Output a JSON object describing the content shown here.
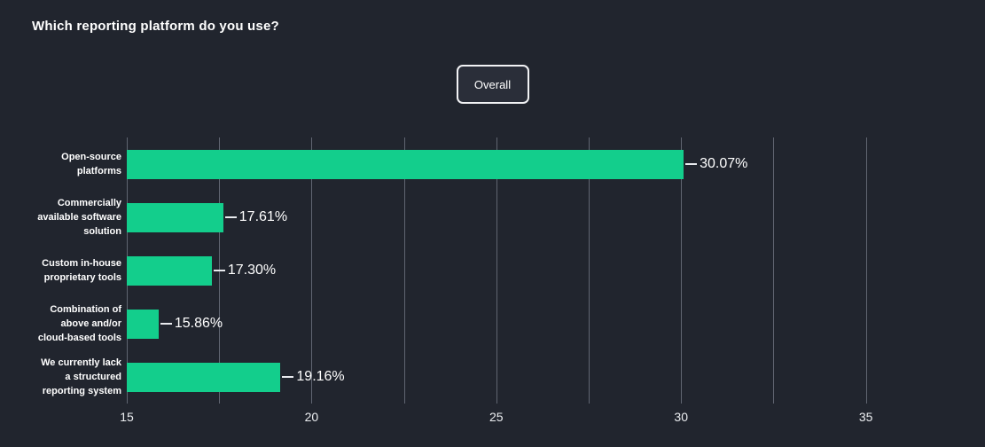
{
  "title": "Which reporting platform do you use?",
  "filter_button": {
    "label": "Overall"
  },
  "chart_data": {
    "type": "bar",
    "orientation": "horizontal",
    "title": "Which reporting platform do you use?",
    "categories": [
      "Open-source platforms",
      "Commercially available software solution",
      "Custom in-house proprietary tools",
      "Combination of above and/or cloud-based tools",
      "We currently lack a structured reporting system"
    ],
    "category_label_lines": [
      [
        "Open-source",
        "platforms"
      ],
      [
        "Commercially",
        "available software",
        "solution"
      ],
      [
        "Custom in-house",
        "proprietary tools"
      ],
      [
        "Combination of",
        "above and/or",
        "cloud-based tools"
      ],
      [
        "We currently lack",
        "a structured",
        "reporting system"
      ]
    ],
    "values": [
      30.07,
      17.61,
      17.3,
      15.86,
      19.16
    ],
    "value_labels": [
      "30.07%",
      "17.61%",
      "17.30%",
      "15.86%",
      "19.16%"
    ],
    "xlabel": "",
    "ylabel": "",
    "xlim": [
      15,
      37.6
    ],
    "x_major_ticks": [
      15,
      20,
      25,
      30,
      35
    ],
    "x_minor_ticks": [
      17.5,
      22.5,
      27.5,
      32.5
    ],
    "grid": true,
    "legend": "none",
    "bar_color": "#13ce8c",
    "background_color": "#21252e",
    "gridline_color": "#767b88",
    "text_color": "#ffffff"
  }
}
